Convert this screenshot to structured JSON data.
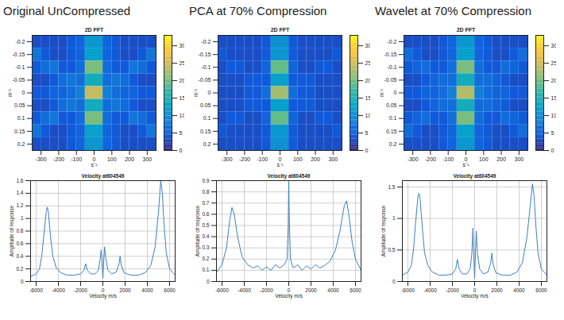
{
  "chart_data": [
    {
      "type": "heatmap",
      "panel": "Original UnCompressed",
      "title": "2D FFT",
      "xlabel": "s⁻¹",
      "ylabel": "m⁻¹",
      "xlim": [
        -350,
        350
      ],
      "ylim": [
        0.225,
        -0.225
      ],
      "xticks": [
        -300,
        -200,
        -100,
        0,
        100,
        200,
        300
      ],
      "yticks": [
        -0.2,
        -0.15,
        -0.1,
        -0.05,
        0,
        0.05,
        0.1,
        0.15,
        0.2
      ],
      "x_bins": [
        -350,
        -300,
        -250,
        -200,
        -150,
        -100,
        -50,
        0,
        50,
        100,
        150,
        200,
        250,
        300,
        350
      ],
      "y_bins": [
        -0.225,
        -0.175,
        -0.125,
        -0.075,
        -0.025,
        0.025,
        0.075,
        0.125,
        0.175,
        0.225
      ],
      "cells": [
        [
          3,
          3,
          3,
          3,
          4,
          5,
          11,
          11,
          5,
          4,
          3,
          3,
          3,
          3
        ],
        [
          7,
          4,
          3,
          3,
          4,
          5,
          12,
          12,
          5,
          4,
          3,
          3,
          4,
          7
        ],
        [
          4,
          6,
          7,
          4,
          4,
          6,
          20,
          20,
          6,
          4,
          4,
          7,
          6,
          4
        ],
        [
          3,
          3,
          4,
          6,
          7,
          6,
          14,
          14,
          6,
          7,
          6,
          4,
          3,
          3
        ],
        [
          4,
          4,
          5,
          5,
          6,
          8,
          24,
          24,
          8,
          6,
          5,
          5,
          4,
          4
        ],
        [
          3,
          3,
          4,
          6,
          7,
          6,
          14,
          14,
          6,
          7,
          6,
          4,
          3,
          3
        ],
        [
          4,
          6,
          7,
          4,
          4,
          6,
          20,
          20,
          6,
          4,
          4,
          7,
          6,
          4
        ],
        [
          7,
          4,
          3,
          3,
          4,
          5,
          12,
          12,
          5,
          4,
          3,
          3,
          4,
          7
        ],
        [
          3,
          3,
          3,
          3,
          4,
          5,
          11,
          11,
          5,
          4,
          3,
          3,
          3,
          3
        ]
      ],
      "colorbar": {
        "range": [
          0,
          33
        ],
        "ticks": [
          0,
          5,
          10,
          15,
          20,
          25,
          30
        ]
      }
    },
    {
      "type": "heatmap",
      "panel": "PCA at 70% Compression",
      "title": "2D FFT",
      "xlabel": "s⁻¹",
      "ylabel": "m⁻¹",
      "xlim": [
        -350,
        350
      ],
      "ylim": [
        0.225,
        -0.225
      ],
      "xticks": [
        -300,
        -200,
        -100,
        0,
        100,
        200,
        300
      ],
      "yticks": [
        -0.2,
        -0.15,
        -0.1,
        -0.05,
        0,
        0.05,
        0.1,
        0.15,
        0.2
      ],
      "x_bins": [
        -350,
        -300,
        -250,
        -200,
        -150,
        -100,
        -50,
        0,
        50,
        100,
        150,
        200,
        250,
        300,
        350
      ],
      "y_bins": [
        -0.225,
        -0.175,
        -0.125,
        -0.075,
        -0.025,
        0.025,
        0.075,
        0.125,
        0.175,
        0.225
      ],
      "cells": [
        [
          3,
          3,
          3,
          3,
          3,
          4,
          10,
          10,
          4,
          3,
          3,
          3,
          3,
          3
        ],
        [
          4,
          3,
          3,
          3,
          3,
          4,
          11,
          11,
          4,
          3,
          3,
          3,
          3,
          4
        ],
        [
          3,
          4,
          4,
          3,
          3,
          5,
          19,
          19,
          5,
          3,
          3,
          4,
          4,
          3
        ],
        [
          3,
          3,
          3,
          4,
          4,
          4,
          12,
          12,
          4,
          4,
          4,
          3,
          3,
          3
        ],
        [
          3,
          3,
          3,
          4,
          4,
          6,
          22,
          22,
          6,
          4,
          4,
          3,
          3,
          3
        ],
        [
          3,
          3,
          3,
          4,
          4,
          4,
          12,
          12,
          4,
          4,
          4,
          3,
          3,
          3
        ],
        [
          3,
          4,
          4,
          3,
          3,
          5,
          19,
          19,
          5,
          3,
          3,
          4,
          4,
          3
        ],
        [
          4,
          3,
          3,
          3,
          3,
          4,
          11,
          11,
          4,
          3,
          3,
          3,
          3,
          4
        ],
        [
          3,
          3,
          3,
          3,
          3,
          4,
          10,
          10,
          4,
          3,
          3,
          3,
          3,
          3
        ]
      ],
      "colorbar": {
        "range": [
          0,
          33
        ],
        "ticks": [
          0,
          5,
          10,
          15,
          20,
          25,
          30
        ]
      }
    },
    {
      "type": "heatmap",
      "panel": "Wavelet at 70% Compression",
      "title": "2D FFT",
      "xlabel": "s⁻¹",
      "ylabel": "m⁻¹",
      "xlim": [
        -350,
        350
      ],
      "ylim": [
        0.225,
        -0.225
      ],
      "xticks": [
        -300,
        -200,
        -100,
        0,
        100,
        200,
        300
      ],
      "yticks": [
        -0.2,
        -0.15,
        -0.1,
        -0.05,
        0,
        0.05,
        0.1,
        0.15,
        0.2
      ],
      "x_bins": [
        -350,
        -300,
        -250,
        -200,
        -150,
        -100,
        -50,
        0,
        50,
        100,
        150,
        200,
        250,
        300,
        350
      ],
      "y_bins": [
        -0.225,
        -0.175,
        -0.125,
        -0.075,
        -0.025,
        0.025,
        0.075,
        0.125,
        0.175,
        0.225
      ],
      "cells": [
        [
          3,
          3,
          3,
          3,
          4,
          5,
          11,
          11,
          5,
          4,
          3,
          3,
          3,
          3
        ],
        [
          6,
          4,
          3,
          3,
          4,
          5,
          12,
          12,
          5,
          4,
          3,
          3,
          4,
          6
        ],
        [
          4,
          5,
          6,
          4,
          4,
          6,
          20,
          20,
          6,
          4,
          4,
          6,
          5,
          4
        ],
        [
          3,
          3,
          4,
          5,
          6,
          6,
          14,
          14,
          6,
          6,
          5,
          4,
          3,
          3
        ],
        [
          4,
          4,
          5,
          5,
          6,
          8,
          23,
          23,
          8,
          6,
          5,
          5,
          4,
          4
        ],
        [
          3,
          3,
          4,
          5,
          6,
          6,
          14,
          14,
          6,
          6,
          5,
          4,
          3,
          3
        ],
        [
          4,
          5,
          6,
          4,
          4,
          6,
          20,
          20,
          6,
          4,
          4,
          6,
          5,
          4
        ],
        [
          6,
          4,
          3,
          3,
          4,
          5,
          12,
          12,
          5,
          4,
          3,
          3,
          4,
          6
        ],
        [
          3,
          3,
          3,
          3,
          4,
          5,
          11,
          11,
          5,
          4,
          3,
          3,
          3,
          3
        ]
      ],
      "colorbar": {
        "range": [
          0,
          33
        ],
        "ticks": [
          0,
          5,
          10,
          15,
          20,
          25,
          30
        ]
      }
    },
    {
      "type": "line",
      "panel": "Original UnCompressed",
      "title": "Velocity at604549",
      "xlabel": "Velocity m/s",
      "ylabel": "Amplitude of response",
      "color": "#3b7fc4",
      "grid": true,
      "xlim": [
        -6500,
        6500
      ],
      "ylim": [
        0,
        1.6
      ],
      "xticks": [
        -6000,
        -4000,
        -2000,
        0,
        2000,
        4000,
        6000
      ],
      "yticks": [
        0,
        0.2,
        0.4,
        0.6,
        0.8,
        1,
        1.2,
        1.4,
        1.6
      ],
      "x": [
        -6500,
        -6000,
        -5700,
        -5500,
        -5300,
        -5100,
        -5000,
        -4900,
        -4700,
        -4500,
        -4200,
        -3800,
        -3200,
        -2600,
        -2000,
        -1700,
        -1550,
        -1400,
        -1100,
        -700,
        -400,
        -250,
        -150,
        -80,
        0,
        80,
        150,
        250,
        450,
        800,
        1200,
        1450,
        1550,
        1650,
        1900,
        2500,
        3200,
        3800,
        4300,
        4700,
        5000,
        5200,
        5350,
        5500,
        5700,
        6000,
        6500
      ],
      "values": [
        0.08,
        0.12,
        0.2,
        0.4,
        0.75,
        1.1,
        1.18,
        1.1,
        0.7,
        0.4,
        0.22,
        0.14,
        0.1,
        0.1,
        0.12,
        0.18,
        0.28,
        0.18,
        0.12,
        0.12,
        0.18,
        0.35,
        0.5,
        0.3,
        0.05,
        0.33,
        0.55,
        0.38,
        0.18,
        0.12,
        0.15,
        0.28,
        0.4,
        0.26,
        0.14,
        0.1,
        0.1,
        0.14,
        0.25,
        0.55,
        1.1,
        1.6,
        1.4,
        0.9,
        0.45,
        0.2,
        0.1
      ]
    },
    {
      "type": "line",
      "panel": "PCA at 70% Compression",
      "title": "Velocity at604549",
      "xlabel": "Velocity m/s",
      "ylabel": "Amplitude of response",
      "color": "#3b7fc4",
      "grid": true,
      "xlim": [
        -6500,
        6500
      ],
      "ylim": [
        0,
        0.9
      ],
      "xticks": [
        -6000,
        -4000,
        -2000,
        0,
        2000,
        4000,
        6000
      ],
      "yticks": [
        0,
        0.1,
        0.2,
        0.3,
        0.4,
        0.5,
        0.6,
        0.7,
        0.8,
        0.9
      ],
      "x": [
        -6500,
        -6000,
        -5600,
        -5300,
        -5100,
        -4900,
        -4600,
        -4200,
        -3700,
        -3200,
        -2800,
        -2400,
        -2000,
        -1600,
        -1200,
        -800,
        -400,
        -150,
        -50,
        0,
        50,
        150,
        400,
        800,
        1200,
        1600,
        2000,
        2400,
        2800,
        3200,
        3700,
        4200,
        4600,
        5000,
        5200,
        5400,
        5700,
        6000,
        6500
      ],
      "values": [
        0.08,
        0.15,
        0.3,
        0.55,
        0.66,
        0.6,
        0.4,
        0.22,
        0.15,
        0.12,
        0.14,
        0.1,
        0.13,
        0.1,
        0.15,
        0.12,
        0.15,
        0.2,
        0.5,
        0.9,
        0.55,
        0.2,
        0.12,
        0.15,
        0.1,
        0.14,
        0.11,
        0.15,
        0.12,
        0.14,
        0.18,
        0.28,
        0.45,
        0.68,
        0.72,
        0.6,
        0.35,
        0.2,
        0.1
      ]
    },
    {
      "type": "line",
      "panel": "Wavelet at 70% Compression",
      "title": "Velocity at604549",
      "xlabel": "Velocity m/s",
      "ylabel": "Amplitude of response",
      "color": "#3b7fc4",
      "grid": true,
      "xlim": [
        -6500,
        6500
      ],
      "ylim": [
        0,
        1.6
      ],
      "xticks": [
        -6000,
        -4000,
        -2000,
        0,
        2000,
        4000,
        6000
      ],
      "yticks": [
        0,
        0.5,
        1,
        1.5
      ],
      "x": [
        -6500,
        -6000,
        -5700,
        -5500,
        -5300,
        -5100,
        -5000,
        -4900,
        -4700,
        -4500,
        -4200,
        -3800,
        -3200,
        -2600,
        -2000,
        -1700,
        -1550,
        -1400,
        -1100,
        -700,
        -400,
        -250,
        -150,
        -80,
        0,
        80,
        150,
        250,
        450,
        800,
        1200,
        1450,
        1550,
        1650,
        1900,
        2500,
        3200,
        3800,
        4300,
        4700,
        5000,
        5200,
        5350,
        5500,
        5700,
        6000,
        6500
      ],
      "values": [
        0.1,
        0.15,
        0.25,
        0.5,
        0.95,
        1.35,
        1.4,
        1.3,
        0.85,
        0.45,
        0.25,
        0.15,
        0.1,
        0.1,
        0.12,
        0.2,
        0.35,
        0.2,
        0.12,
        0.12,
        0.2,
        0.45,
        0.85,
        0.4,
        0.05,
        0.5,
        0.8,
        0.45,
        0.2,
        0.12,
        0.15,
        0.3,
        0.45,
        0.28,
        0.14,
        0.1,
        0.1,
        0.15,
        0.3,
        0.7,
        1.2,
        1.55,
        1.35,
        0.9,
        0.45,
        0.2,
        0.1
      ]
    }
  ]
}
